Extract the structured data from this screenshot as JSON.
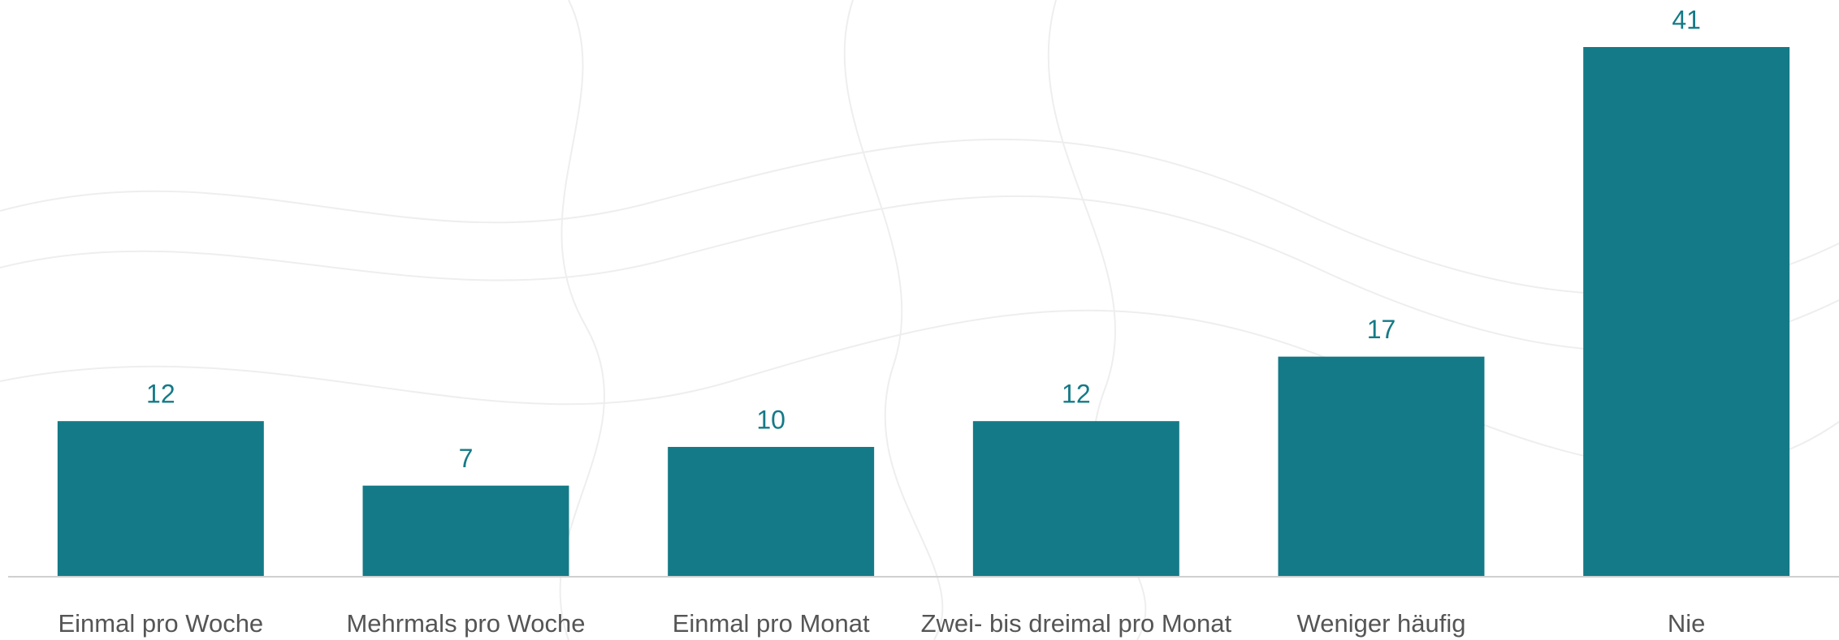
{
  "chart_data": {
    "type": "bar",
    "categories": [
      "Einmal pro Woche",
      "Mehrmals pro Woche",
      "Einmal pro Monat",
      "Zwei- bis dreimal pro Monat",
      "Weniger häufig",
      "Nie"
    ],
    "values": [
      12,
      7,
      10,
      12,
      17,
      41
    ],
    "color": "#147a87",
    "ylim": [
      0,
      41
    ]
  }
}
